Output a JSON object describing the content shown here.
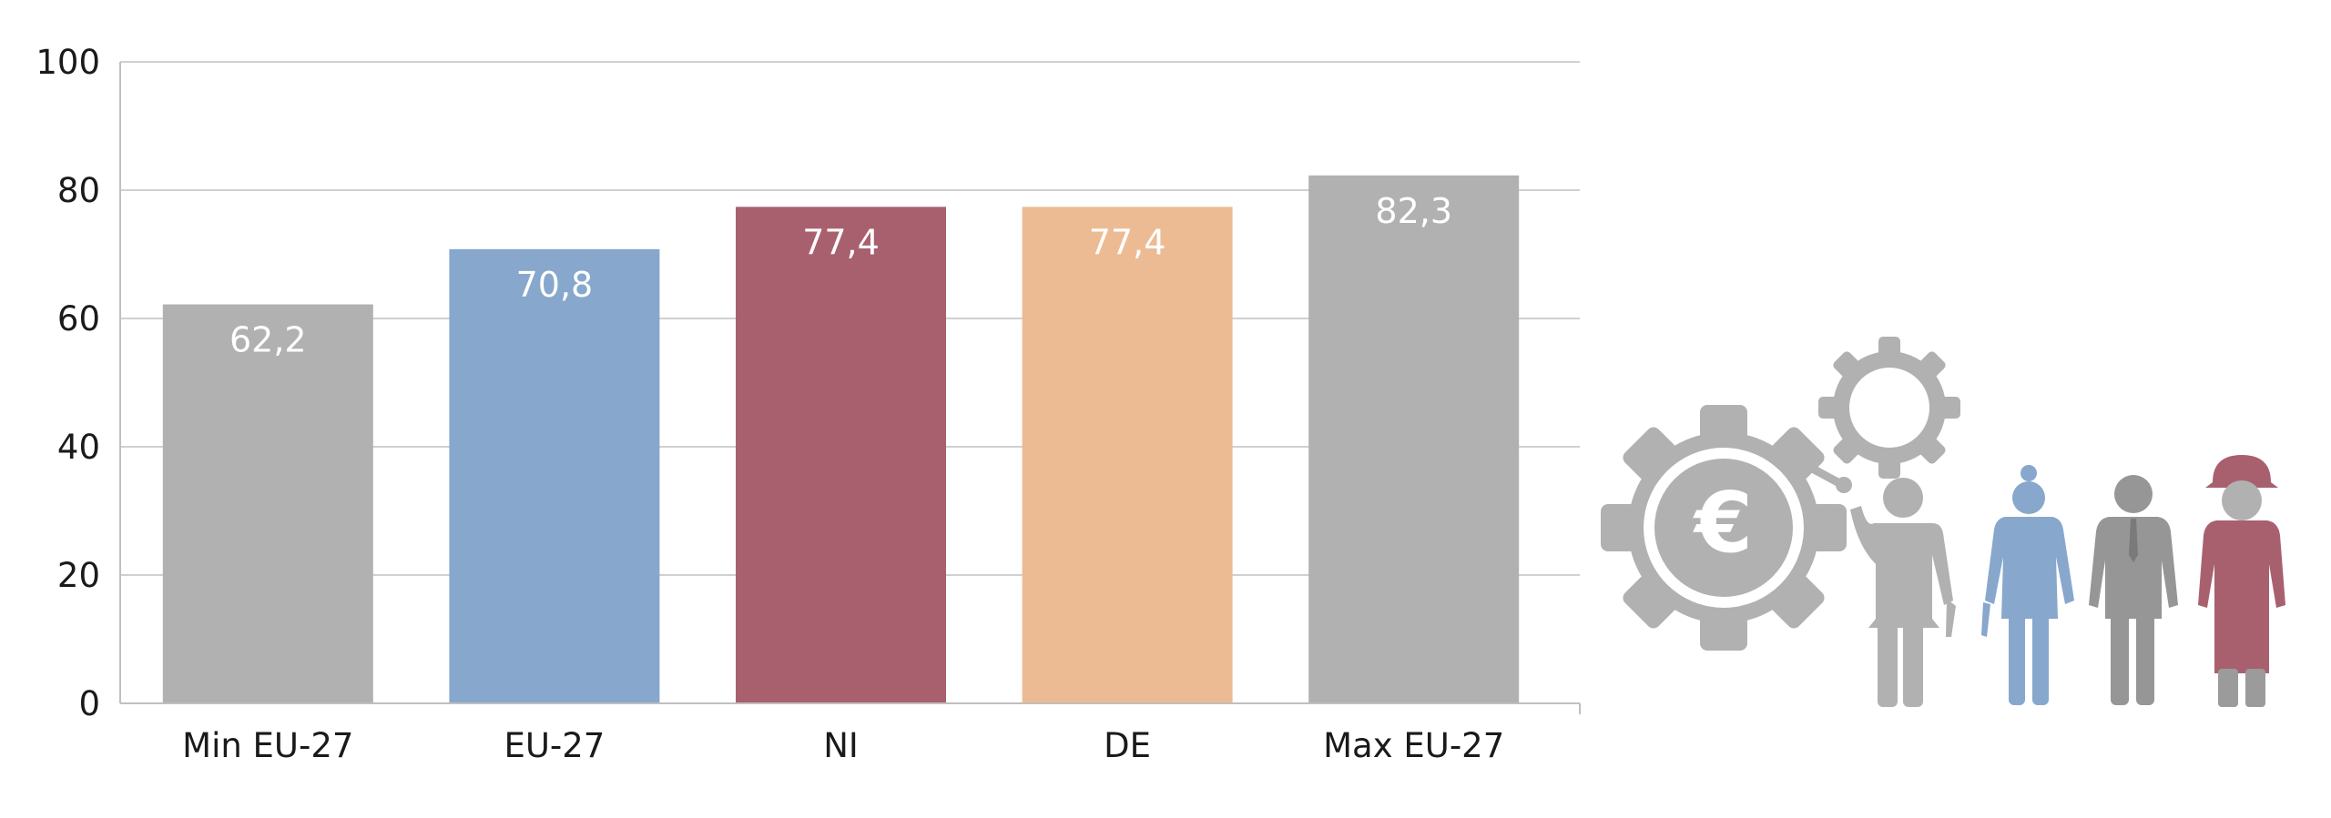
{
  "chart_data": {
    "type": "bar",
    "categories": [
      "Min EU-27",
      "EU-27",
      "NI",
      "DE",
      "Max EU-27"
    ],
    "values": [
      62.2,
      70.8,
      77.4,
      77.4,
      82.3
    ],
    "data_labels": [
      "62,2",
      "70,8",
      "77,4",
      "77,4",
      "82,3"
    ],
    "bar_colors": [
      "#b1b1b1",
      "#87a7cd",
      "#a8606f",
      "#edbb93",
      "#b1b1b1"
    ],
    "title": "",
    "xlabel": "",
    "ylabel": "",
    "ylim": [
      0,
      100
    ],
    "yticks": [
      0,
      20,
      40,
      60,
      80,
      100
    ],
    "ytick_labels": [
      "0",
      "20",
      "40",
      "60",
      "80",
      "100"
    ],
    "grid": true,
    "legend": "none"
  },
  "illustration": {
    "icons": [
      "large-gear-euro-icon",
      "small-gear-icon",
      "worker-with-wrench-icon",
      "police-officer-icon",
      "businessman-icon",
      "firefighter-icon"
    ],
    "colors": {
      "gray": "#b1b1b1",
      "dark_gray": "#969696",
      "blue": "#87a7cd",
      "red": "#a8606f"
    }
  }
}
